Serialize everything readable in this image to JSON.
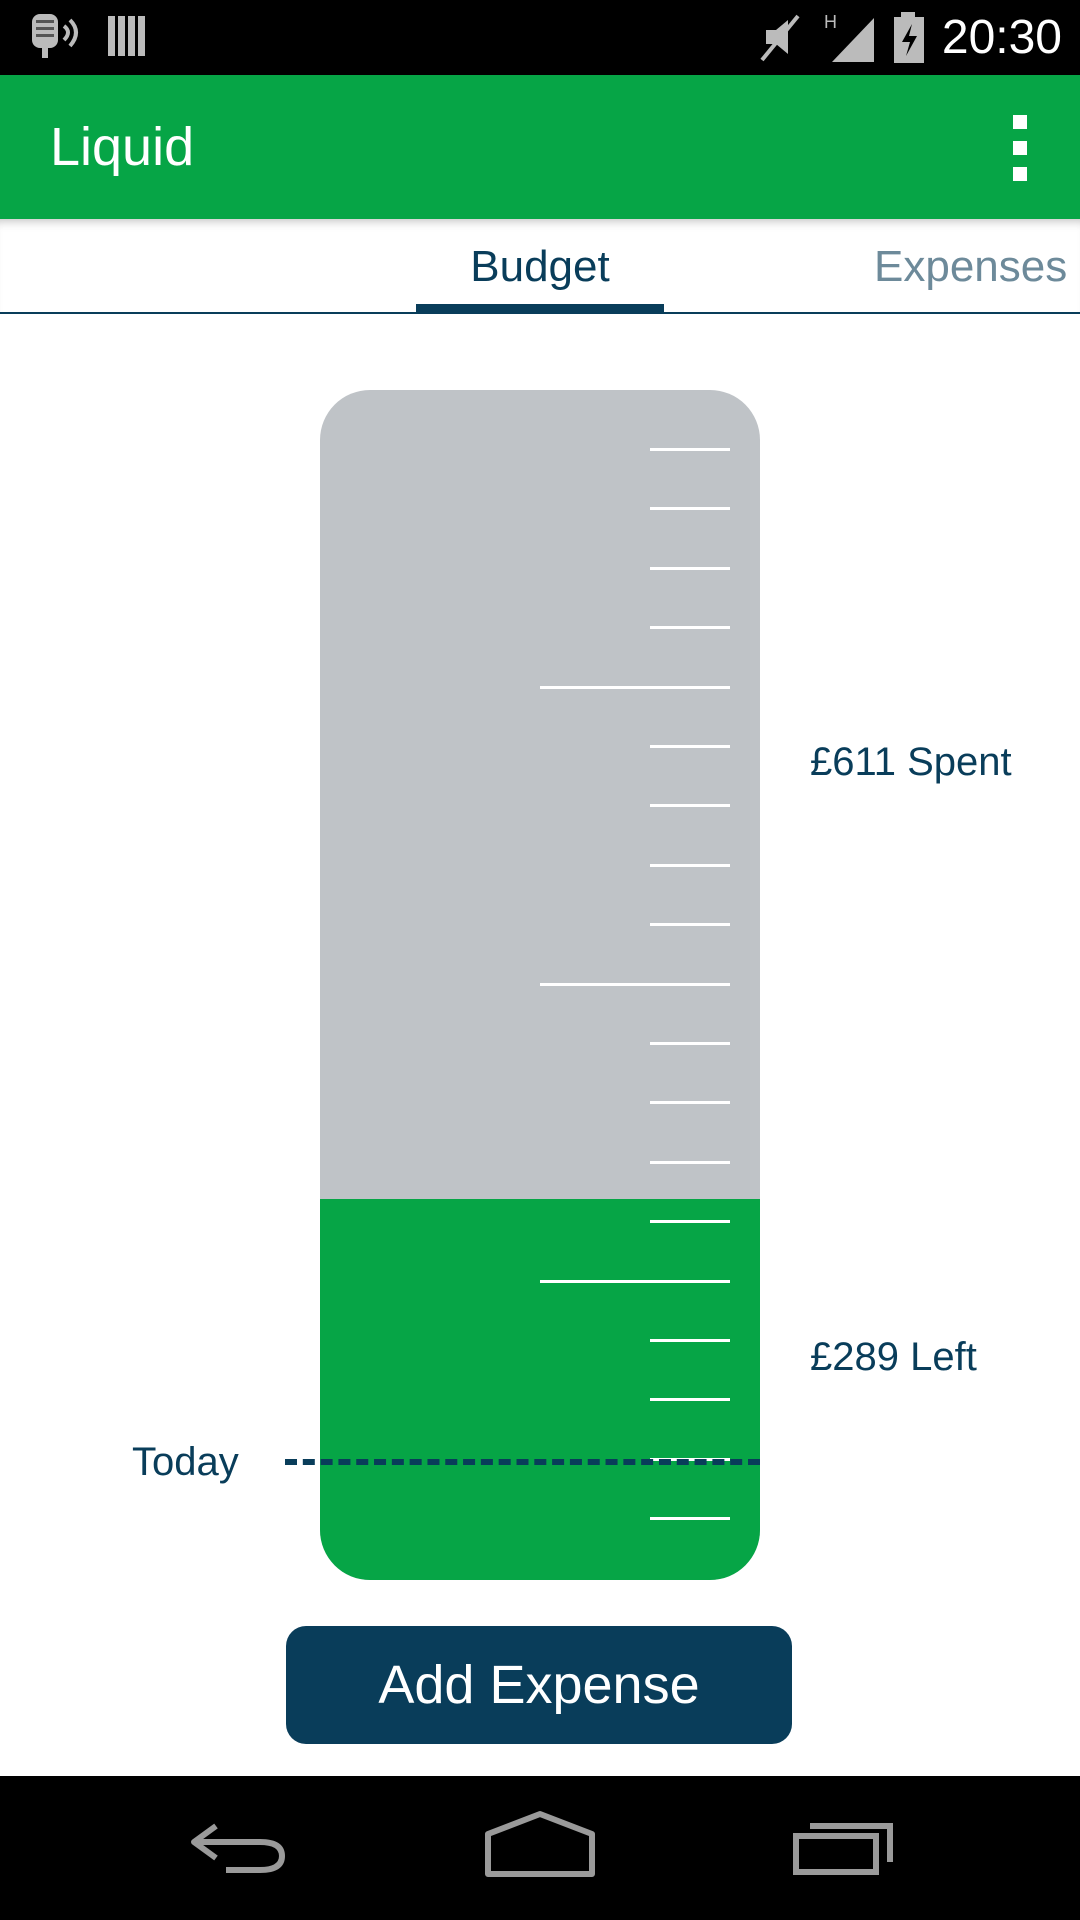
{
  "status_bar": {
    "time": "20:30",
    "icons": [
      "voice-app-icon",
      "sim-icon",
      "mute-icon",
      "signal-h-icon",
      "battery-charging-icon"
    ]
  },
  "app_bar": {
    "title": "Liquid",
    "menu_icon": "overflow-menu-icon"
  },
  "tabs": [
    {
      "label": "Budget",
      "selected": true
    },
    {
      "label": "Expenses",
      "selected": false
    }
  ],
  "budget": {
    "spent_label": "£611 Spent",
    "left_label": "£289 Left",
    "today_label": "Today",
    "spent_amount": 611,
    "left_amount": 289,
    "remaining_fraction": 0.32,
    "today_fraction": 0.1,
    "fill_color": "#06a546",
    "empty_color": "#bfc3c7"
  },
  "actions": {
    "add_expense_label": "Add Expense"
  },
  "nav_bar": {
    "icons": [
      "back-icon",
      "home-icon",
      "recent-apps-icon"
    ]
  },
  "colors": {
    "primary": "#06a546",
    "accent": "#093d5a"
  }
}
